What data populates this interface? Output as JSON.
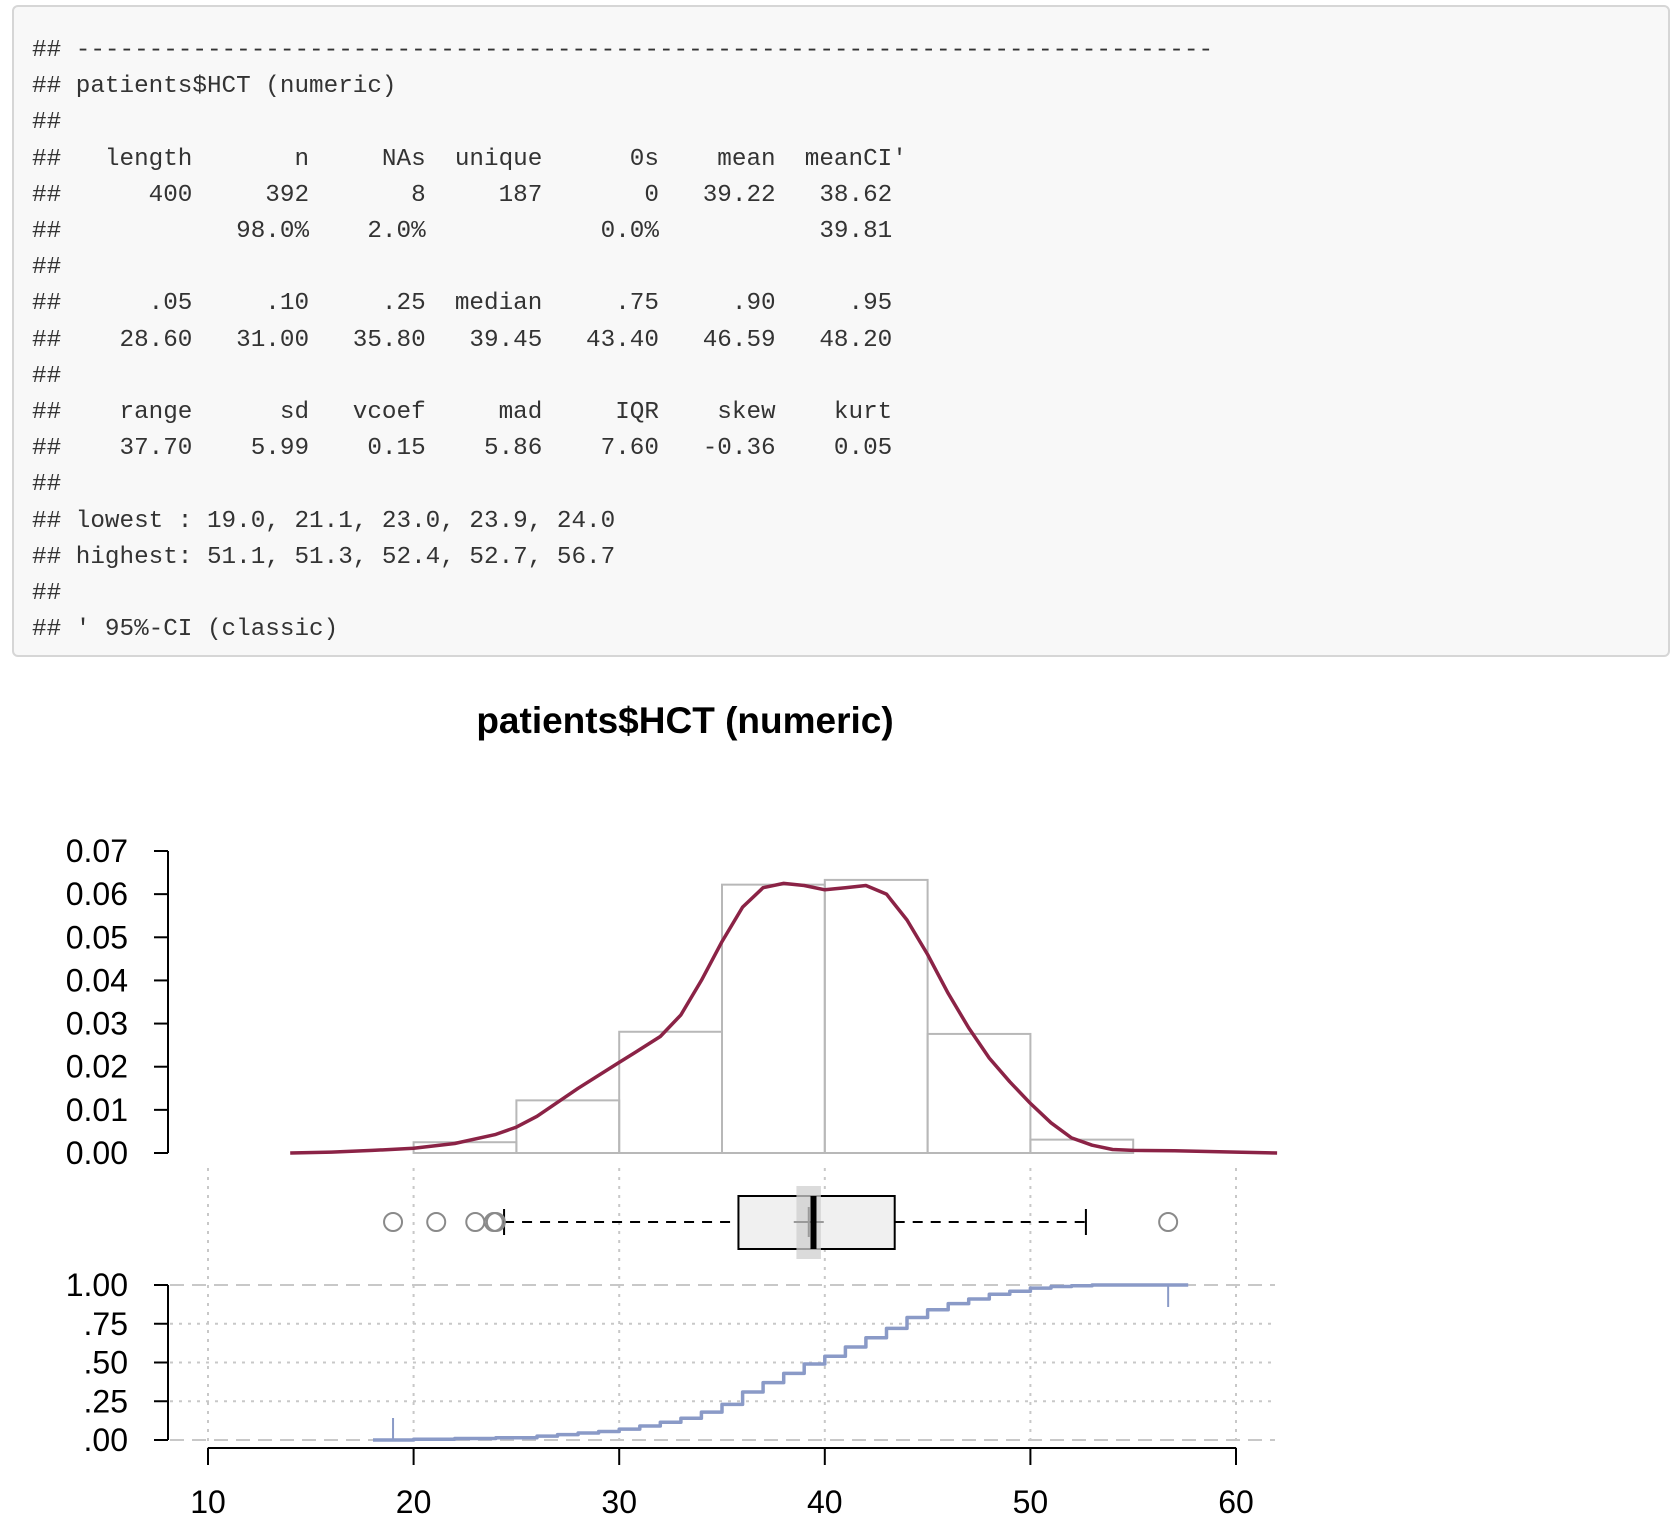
{
  "console": {
    "lines": [
      "## ------------------------------------------------------------------------------",
      "## patients$HCT (numeric)",
      "##",
      "##   length       n     NAs  unique      0s    mean  meanCI'",
      "##      400     392       8     187       0   39.22   38.62",
      "##            98.0%    2.0%            0.0%           39.81",
      "##",
      "##      .05     .10     .25  median     .75     .90     .95",
      "##    28.60   31.00   35.80   39.45   43.40   46.59   48.20",
      "##",
      "##    range      sd   vcoef     mad     IQR    skew    kurt",
      "##    37.70    5.99    0.15    5.86    7.60   -0.36    0.05",
      "##",
      "## lowest : 19.0, 21.1, 23.0, 23.9, 24.0",
      "## highest: 51.1, 51.3, 52.4, 52.7, 56.7",
      "##",
      "## ' 95%-CI (classic)"
    ]
  },
  "chart_data": {
    "type": "histogram+boxplot+ecdf",
    "title": "patients$HCT (numeric)",
    "xlim": [
      10,
      60
    ],
    "x_ticks": [
      "10",
      "20",
      "30",
      "40",
      "50",
      "60"
    ],
    "histogram": {
      "bins": [
        [
          20,
          25
        ],
        [
          25,
          30
        ],
        [
          30,
          35
        ],
        [
          35,
          40
        ],
        [
          40,
          45
        ],
        [
          45,
          50
        ],
        [
          50,
          55
        ]
      ],
      "density": [
        0.0025,
        0.0122,
        0.0281,
        0.0622,
        0.0633,
        0.0276,
        0.0031
      ],
      "ylim": [
        0,
        0.07
      ],
      "y_ticks": [
        "0.00",
        "0.01",
        "0.02",
        "0.03",
        "0.04",
        "0.05",
        "0.06",
        "0.07"
      ]
    },
    "density_curve": {
      "x": [
        14,
        16,
        18,
        20,
        22,
        24,
        25,
        26,
        28,
        30,
        31,
        32,
        33,
        34,
        35,
        36,
        37,
        38,
        39,
        40,
        41,
        42,
        43,
        44,
        45,
        46,
        47,
        48,
        49,
        50,
        51,
        52,
        53,
        54,
        55,
        57,
        60,
        62
      ],
      "y": [
        0.0,
        0.0002,
        0.0006,
        0.0011,
        0.0022,
        0.0043,
        0.006,
        0.0085,
        0.015,
        0.021,
        0.024,
        0.027,
        0.032,
        0.04,
        0.049,
        0.057,
        0.0615,
        0.0625,
        0.062,
        0.061,
        0.0615,
        0.062,
        0.06,
        0.054,
        0.046,
        0.037,
        0.029,
        0.022,
        0.0165,
        0.0115,
        0.007,
        0.0035,
        0.0018,
        0.0008,
        0.0006,
        0.0005,
        0.0002,
        0.0
      ],
      "color": "#8b2346"
    },
    "boxplot": {
      "whisker_low": 24.4,
      "q1": 35.8,
      "median": 39.45,
      "q3": 43.4,
      "whisker_high": 52.7,
      "mean": 39.22,
      "mean_ci": [
        38.62,
        39.81
      ],
      "outliers": [
        19.0,
        21.1,
        23.0,
        23.9,
        24.0,
        56.7
      ]
    },
    "ecdf": {
      "x": [
        19,
        20,
        22,
        24,
        26,
        27,
        28,
        29,
        30,
        31,
        32,
        33,
        34,
        35,
        36,
        37,
        38,
        39,
        40,
        41,
        42,
        43,
        44,
        45,
        46,
        47,
        48,
        49,
        50,
        51,
        52,
        53,
        55,
        56.7
      ],
      "y": [
        0.0,
        0.005,
        0.01,
        0.015,
        0.025,
        0.035,
        0.045,
        0.055,
        0.07,
        0.09,
        0.115,
        0.14,
        0.18,
        0.23,
        0.31,
        0.37,
        0.43,
        0.49,
        0.54,
        0.6,
        0.66,
        0.72,
        0.79,
        0.84,
        0.88,
        0.91,
        0.94,
        0.96,
        0.98,
        0.99,
        0.995,
        1.0,
        1.0,
        1.0
      ],
      "y_ticks": [
        ".00",
        ".25",
        ".50",
        ".75",
        "1.00"
      ],
      "color": "#8a9ac7"
    }
  }
}
